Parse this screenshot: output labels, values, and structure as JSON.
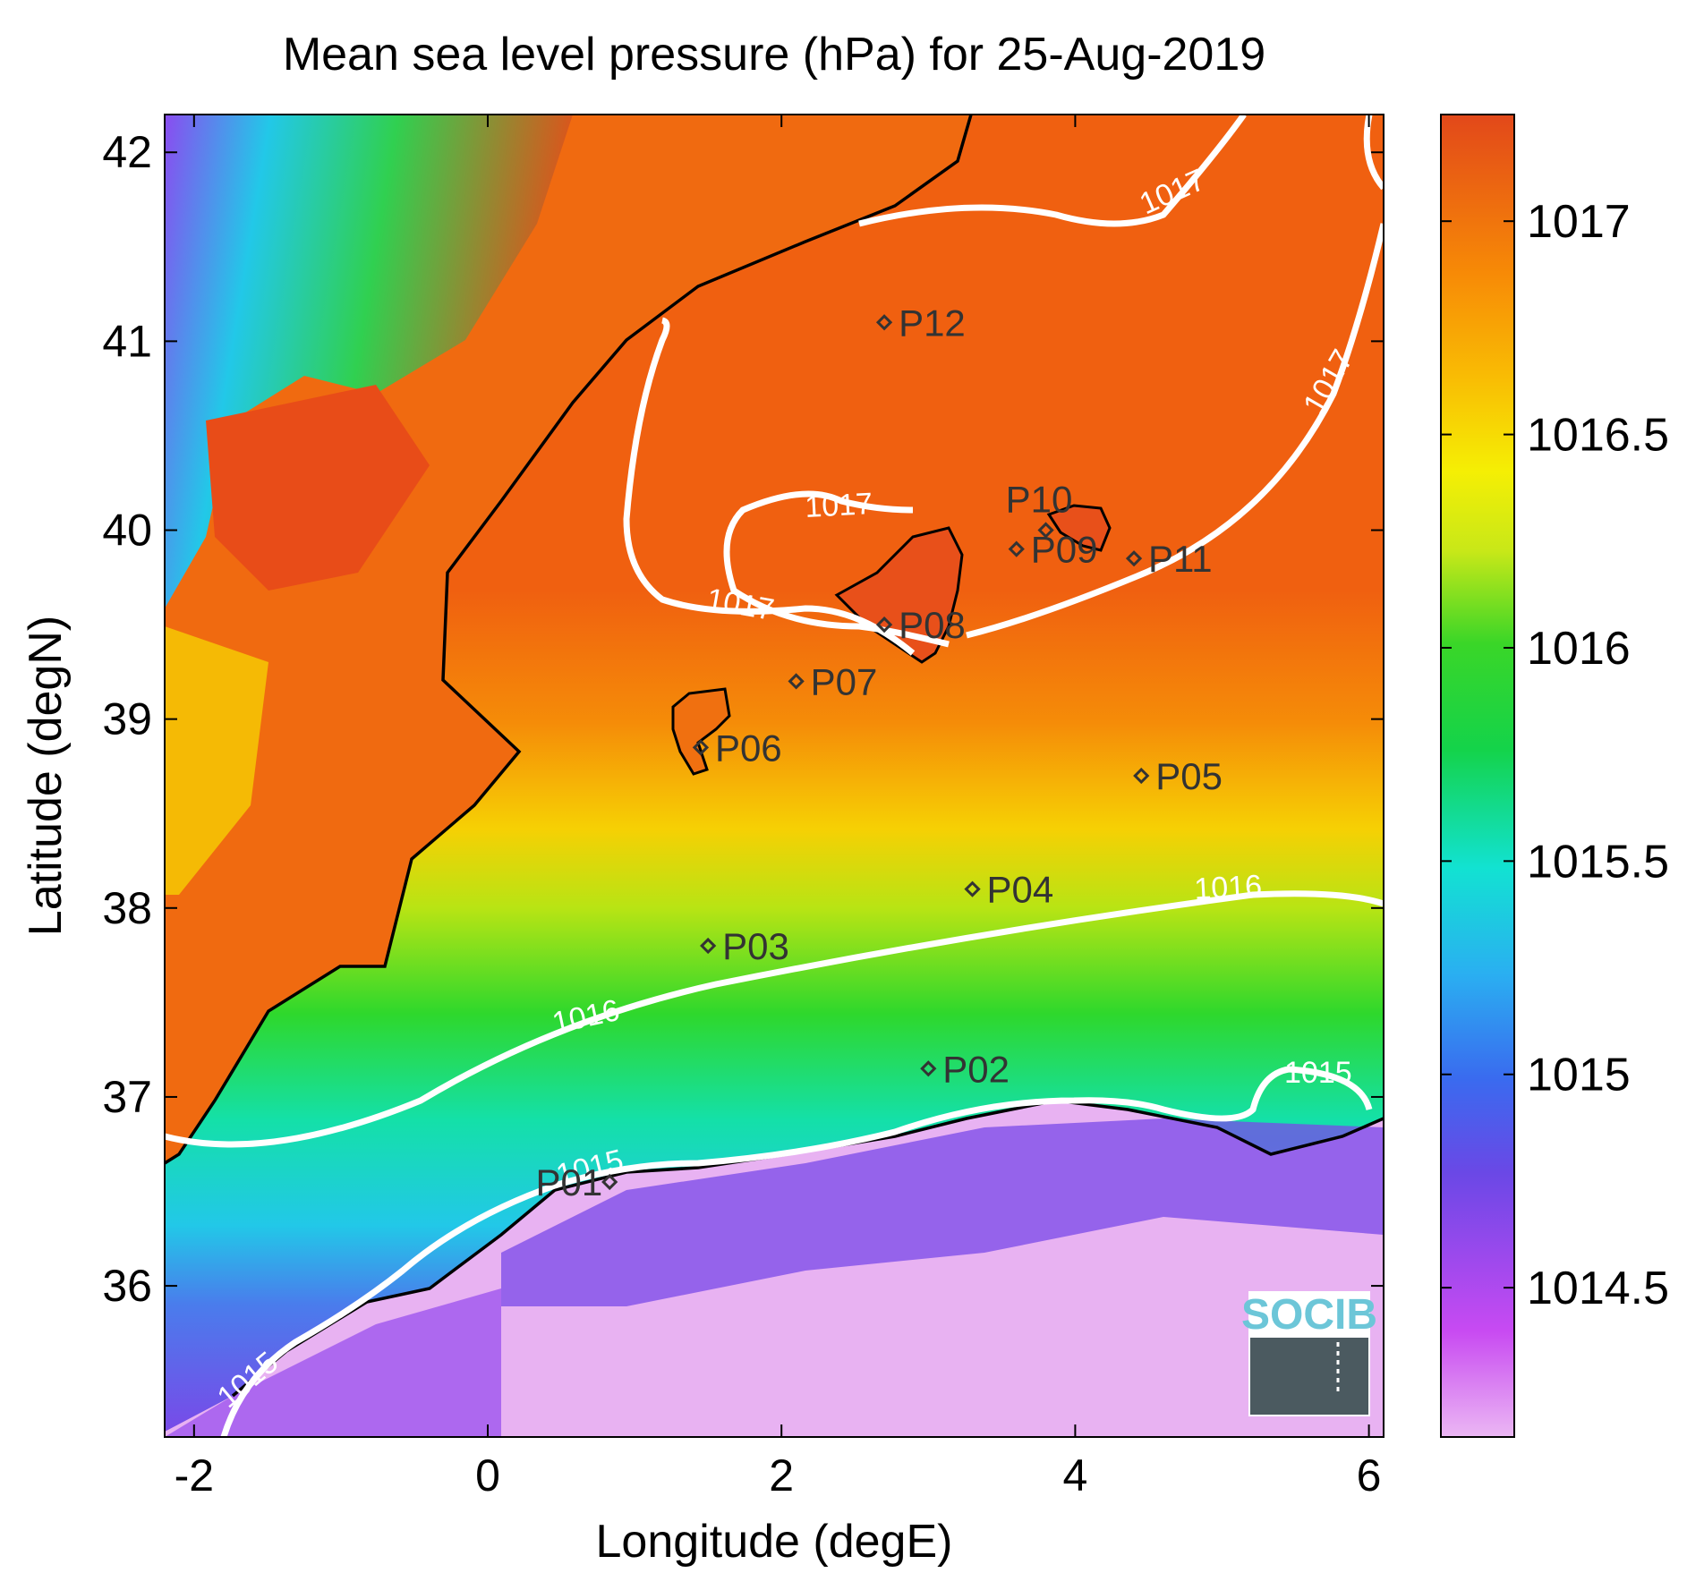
{
  "chart_data": {
    "type": "heatmap",
    "title": "Mean sea level pressure (hPa) for 25-Aug-2019",
    "xlabel": "Longitude (degE)",
    "ylabel": "Latitude (degN)",
    "xlim": [
      -2.2,
      6.1
    ],
    "ylim": [
      35.2,
      42.2
    ],
    "x_ticks": [
      -2,
      0,
      2,
      4,
      6
    ],
    "x_tick_labels": [
      "-2",
      "0",
      "2",
      "4",
      "6"
    ],
    "y_ticks": [
      36,
      37,
      38,
      39,
      40,
      41,
      42
    ],
    "y_tick_labels": [
      "36",
      "37",
      "38",
      "39",
      "40",
      "41",
      "42"
    ],
    "colorbar": {
      "range": [
        1014.15,
        1017.25
      ],
      "ticks": [
        1014.5,
        1015,
        1015.5,
        1016,
        1016.5,
        1017
      ],
      "tick_labels": [
        "1014.5",
        "1015",
        "1015.5",
        "1016",
        "1016.5",
        "1017"
      ],
      "colormap": [
        "#e8b0f0",
        "#c040f0",
        "#7a48e8",
        "#3060f0",
        "#2ab0f0",
        "#10e0d0",
        "#10d050",
        "#20d020",
        "#a0e020",
        "#f0f000",
        "#f8c000",
        "#f89000",
        "#f06010",
        "#e04818"
      ]
    },
    "contours": [
      {
        "level": 1015,
        "label": "1015"
      },
      {
        "level": 1016,
        "label": "1016"
      },
      {
        "level": 1017,
        "label": "1017"
      }
    ],
    "stations": [
      {
        "name": "P01",
        "lon": 0.83,
        "lat": 36.55
      },
      {
        "name": "P02",
        "lon": 3.0,
        "lat": 37.15
      },
      {
        "name": "P03",
        "lon": 1.5,
        "lat": 37.8
      },
      {
        "name": "P04",
        "lon": 3.3,
        "lat": 38.1
      },
      {
        "name": "P05",
        "lon": 4.45,
        "lat": 38.7
      },
      {
        "name": "P06",
        "lon": 1.45,
        "lat": 38.85
      },
      {
        "name": "P07",
        "lon": 2.1,
        "lat": 39.2
      },
      {
        "name": "P08",
        "lon": 2.7,
        "lat": 39.5
      },
      {
        "name": "P09",
        "lon": 3.6,
        "lat": 39.9
      },
      {
        "name": "P10",
        "lon": 3.8,
        "lat": 40.0
      },
      {
        "name": "P11",
        "lon": 4.4,
        "lat": 39.85
      },
      {
        "name": "P12",
        "lon": 2.7,
        "lat": 41.1
      }
    ],
    "grid": false,
    "logo": "SOCIB"
  }
}
